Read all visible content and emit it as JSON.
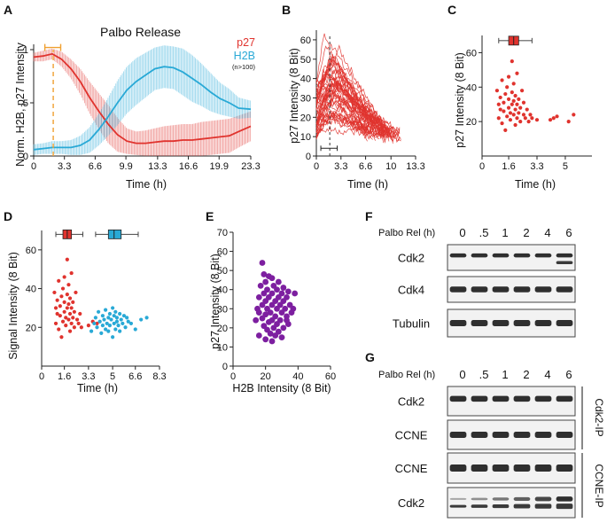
{
  "colors": {
    "p27": "#e0332e",
    "h2b": "#29a9d6",
    "purple": "#7d1fa0",
    "orange": "#f0a030"
  },
  "panels": {
    "A": "A",
    "B": "B",
    "C": "C",
    "D": "D",
    "E": "E",
    "F": "F",
    "G": "G"
  },
  "chart_data": [
    {
      "id": "A",
      "type": "line",
      "title": "Palbo Release",
      "xlabel": "Time (h)",
      "ylabel": "Norm. H2B, p27 Intensity",
      "xlim": [
        0,
        23.3
      ],
      "ylim": [
        0,
        1.05
      ],
      "xticks": [
        0,
        3.3,
        6.6,
        9.9,
        13.3,
        16.6,
        19.9,
        23.3
      ],
      "xtick_labels": [
        "0",
        "3.3",
        "6.6",
        "9.9",
        "13.3",
        "16.6",
        "19.9",
        "23.3"
      ],
      "yticks": [
        0,
        0.5,
        1
      ],
      "ytick_labels": [
        "0",
        ".5",
        "1"
      ],
      "legend": [
        "p27",
        "H2B"
      ],
      "legend_note": "(n>100)",
      "marker_x": 2.1,
      "marker_range": [
        1.2,
        2.9
      ],
      "x": [
        0,
        1,
        2,
        3,
        4,
        5,
        6,
        7,
        8,
        9,
        10,
        11,
        12,
        13,
        14,
        15,
        16,
        17,
        18,
        19,
        20,
        21,
        22,
        23.3
      ],
      "series": [
        {
          "name": "p27",
          "values": [
            0.93,
            0.94,
            0.96,
            0.91,
            0.82,
            0.7,
            0.55,
            0.42,
            0.3,
            0.2,
            0.14,
            0.12,
            0.12,
            0.13,
            0.14,
            0.14,
            0.15,
            0.15,
            0.16,
            0.17,
            0.18,
            0.19,
            0.23,
            0.28
          ],
          "err": [
            0.04,
            0.05,
            0.05,
            0.07,
            0.09,
            0.12,
            0.15,
            0.17,
            0.18,
            0.16,
            0.12,
            0.11,
            0.12,
            0.13,
            0.14,
            0.15,
            0.15,
            0.15,
            0.16,
            0.16,
            0.16,
            0.16,
            0.15,
            0.14
          ]
        },
        {
          "name": "H2B",
          "values": [
            0.06,
            0.07,
            0.08,
            0.08,
            0.08,
            0.1,
            0.15,
            0.25,
            0.37,
            0.5,
            0.62,
            0.7,
            0.76,
            0.82,
            0.84,
            0.83,
            0.79,
            0.73,
            0.67,
            0.6,
            0.54,
            0.5,
            0.45,
            0.44
          ],
          "err": [
            0.05,
            0.05,
            0.06,
            0.06,
            0.07,
            0.09,
            0.12,
            0.15,
            0.18,
            0.21,
            0.22,
            0.22,
            0.21,
            0.2,
            0.2,
            0.2,
            0.22,
            0.22,
            0.2,
            0.18,
            0.15,
            0.13,
            0.1,
            0.08
          ]
        }
      ]
    },
    {
      "id": "B",
      "type": "line",
      "xlabel": "Time (h)",
      "ylabel": "p27 Intensity (8 Bit)",
      "xlim": [
        0,
        13.3
      ],
      "ylim": [
        0,
        65
      ],
      "xticks": [
        0,
        3.3,
        6.6,
        10,
        13.3
      ],
      "xtick_labels": [
        "0",
        "3.3",
        "6.6",
        "10",
        "13.3"
      ],
      "yticks": [
        0,
        10,
        20,
        30,
        40,
        50,
        60
      ],
      "ytick_labels": [
        "0",
        "10",
        "20",
        "30",
        "40",
        "50",
        "60"
      ],
      "marker_x": 1.8,
      "marker_range": [
        0.6,
        2.8
      ],
      "n_traces": 50,
      "trace_start_range": [
        10,
        62
      ],
      "trace_end_range": [
        8,
        13
      ],
      "peak_time_range": [
        1,
        3.5
      ],
      "end_time_range": [
        6.5,
        11.5
      ]
    },
    {
      "id": "C",
      "type": "scatter",
      "xlabel": "Time (h)",
      "ylabel": "p27 Intensity (8 Bit)",
      "xlim": [
        0,
        6.6
      ],
      "ylim": [
        0,
        70
      ],
      "xticks": [
        0,
        1.6,
        3.3,
        5
      ],
      "xtick_labels": [
        "0",
        "1.6",
        "3.3",
        "5"
      ],
      "yticks": [
        20,
        40,
        60
      ],
      "ytick_labels": [
        "20",
        "40",
        "60"
      ],
      "box": {
        "min": 1.0,
        "q1": 1.6,
        "median": 1.9,
        "q3": 2.2,
        "max": 3.0,
        "y": 67
      },
      "points": [
        [
          0.9,
          38
        ],
        [
          1.0,
          30
        ],
        [
          1.0,
          22
        ],
        [
          1.1,
          27
        ],
        [
          1.1,
          34
        ],
        [
          1.2,
          19
        ],
        [
          1.2,
          44
        ],
        [
          1.3,
          26
        ],
        [
          1.3,
          31
        ],
        [
          1.4,
          15
        ],
        [
          1.4,
          36
        ],
        [
          1.5,
          23
        ],
        [
          1.5,
          40
        ],
        [
          1.6,
          28
        ],
        [
          1.6,
          33
        ],
        [
          1.6,
          46
        ],
        [
          1.7,
          21
        ],
        [
          1.7,
          25
        ],
        [
          1.8,
          30
        ],
        [
          1.8,
          37
        ],
        [
          1.8,
          55
        ],
        [
          1.9,
          24
        ],
        [
          1.9,
          32
        ],
        [
          1.9,
          42
        ],
        [
          2.0,
          18
        ],
        [
          2.0,
          27
        ],
        [
          2.0,
          35
        ],
        [
          2.1,
          22
        ],
        [
          2.1,
          30
        ],
        [
          2.1,
          48
        ],
        [
          2.2,
          25
        ],
        [
          2.2,
          33
        ],
        [
          2.3,
          20
        ],
        [
          2.3,
          28
        ],
        [
          2.4,
          38
        ],
        [
          2.5,
          24
        ],
        [
          2.5,
          31
        ],
        [
          2.6,
          22
        ],
        [
          2.7,
          27
        ],
        [
          2.8,
          20
        ],
        [
          2.9,
          24
        ],
        [
          3.0,
          22
        ],
        [
          3.3,
          21
        ],
        [
          4.1,
          21
        ],
        [
          4.3,
          22
        ],
        [
          4.5,
          23
        ],
        [
          5.2,
          20
        ],
        [
          5.5,
          24
        ]
      ]
    },
    {
      "id": "D",
      "type": "scatter",
      "xlabel": "Time (h)",
      "ylabel": "Signal Intensity (8 Bit)",
      "xlim": [
        0,
        8.3
      ],
      "ylim": [
        0,
        70
      ],
      "xticks": [
        0,
        1.6,
        3.3,
        5,
        6.6,
        8.3
      ],
      "xtick_labels": [
        "0",
        "1.6",
        "3.3",
        "5",
        "6.6",
        "8.3"
      ],
      "yticks": [
        20,
        40,
        60
      ],
      "ytick_labels": [
        "20",
        "40",
        "60"
      ],
      "boxes": [
        {
          "name": "p27",
          "min": 1.0,
          "q1": 1.5,
          "median": 1.8,
          "q3": 2.1,
          "max": 2.9,
          "y": 68
        },
        {
          "name": "H2B",
          "min": 3.8,
          "q1": 4.7,
          "median": 5.1,
          "q3": 5.6,
          "max": 6.8,
          "y": 68
        }
      ],
      "series": [
        {
          "name": "p27",
          "points": [
            [
              0.9,
              38
            ],
            [
              1.0,
              30
            ],
            [
              1.0,
              22
            ],
            [
              1.1,
              27
            ],
            [
              1.1,
              34
            ],
            [
              1.2,
              19
            ],
            [
              1.2,
              44
            ],
            [
              1.3,
              26
            ],
            [
              1.3,
              31
            ],
            [
              1.4,
              15
            ],
            [
              1.4,
              36
            ],
            [
              1.5,
              23
            ],
            [
              1.5,
              40
            ],
            [
              1.6,
              28
            ],
            [
              1.6,
              33
            ],
            [
              1.6,
              46
            ],
            [
              1.7,
              21
            ],
            [
              1.7,
              25
            ],
            [
              1.8,
              30
            ],
            [
              1.8,
              37
            ],
            [
              1.8,
              55
            ],
            [
              1.9,
              24
            ],
            [
              1.9,
              32
            ],
            [
              1.9,
              42
            ],
            [
              2.0,
              18
            ],
            [
              2.0,
              27
            ],
            [
              2.0,
              35
            ],
            [
              2.1,
              22
            ],
            [
              2.1,
              30
            ],
            [
              2.1,
              48
            ],
            [
              2.2,
              25
            ],
            [
              2.2,
              33
            ],
            [
              2.3,
              20
            ],
            [
              2.3,
              28
            ],
            [
              2.4,
              38
            ],
            [
              2.5,
              24
            ],
            [
              2.6,
              22
            ],
            [
              2.7,
              27
            ],
            [
              2.8,
              20
            ],
            [
              3.3,
              21
            ],
            [
              3.6,
              23
            ],
            [
              3.9,
              22
            ]
          ]
        },
        {
          "name": "H2B",
          "points": [
            [
              3.5,
              18
            ],
            [
              3.7,
              22
            ],
            [
              3.8,
              25
            ],
            [
              3.9,
              20
            ],
            [
              4.0,
              28
            ],
            [
              4.1,
              23
            ],
            [
              4.2,
              17
            ],
            [
              4.3,
              26
            ],
            [
              4.3,
              21
            ],
            [
              4.4,
              24
            ],
            [
              4.5,
              19
            ],
            [
              4.5,
              29
            ],
            [
              4.6,
              22
            ],
            [
              4.7,
              25
            ],
            [
              4.7,
              18
            ],
            [
              4.8,
              27
            ],
            [
              4.8,
              21
            ],
            [
              4.9,
              24
            ],
            [
              5.0,
              15
            ],
            [
              5.0,
              30
            ],
            [
              5.1,
              22
            ],
            [
              5.1,
              26
            ],
            [
              5.2,
              19
            ],
            [
              5.2,
              28
            ],
            [
              5.3,
              23
            ],
            [
              5.3,
              25
            ],
            [
              5.4,
              21
            ],
            [
              5.5,
              27
            ],
            [
              5.5,
              18
            ],
            [
              5.6,
              24
            ],
            [
              5.7,
              22
            ],
            [
              5.8,
              26
            ],
            [
              5.9,
              20
            ],
            [
              6.0,
              25
            ],
            [
              6.1,
              23
            ],
            [
              6.3,
              22
            ],
            [
              6.6,
              19
            ],
            [
              7.0,
              24
            ],
            [
              7.4,
              25
            ]
          ]
        }
      ]
    },
    {
      "id": "E",
      "type": "scatter",
      "xlabel": "H2B Intensity (8 Bit)",
      "ylabel": "p27 Intensity (8 Bit)",
      "xlim": [
        0,
        60
      ],
      "ylim": [
        0,
        70
      ],
      "xticks": [
        0,
        20,
        40,
        60
      ],
      "xtick_labels": [
        "0",
        "20",
        "40",
        "60"
      ],
      "yticks": [
        0,
        10,
        20,
        30,
        40,
        50,
        60,
        70
      ],
      "ytick_labels": [
        "0",
        "10",
        "20",
        "30",
        "40",
        "50",
        "60",
        "70"
      ],
      "points": [
        [
          18,
          54
        ],
        [
          19,
          48
        ],
        [
          22,
          47
        ],
        [
          24,
          46
        ],
        [
          20,
          44
        ],
        [
          28,
          44
        ],
        [
          17,
          42
        ],
        [
          25,
          42
        ],
        [
          31,
          41
        ],
        [
          21,
          40
        ],
        [
          27,
          40
        ],
        [
          34,
          39
        ],
        [
          19,
          38
        ],
        [
          24,
          38
        ],
        [
          30,
          38
        ],
        [
          38,
          38
        ],
        [
          16,
          36
        ],
        [
          22,
          36
        ],
        [
          28,
          36
        ],
        [
          33,
          36
        ],
        [
          20,
          34
        ],
        [
          26,
          34
        ],
        [
          31,
          34
        ],
        [
          18,
          32
        ],
        [
          24,
          32
        ],
        [
          29,
          32
        ],
        [
          35,
          32
        ],
        [
          21,
          30
        ],
        [
          27,
          30
        ],
        [
          32,
          30
        ],
        [
          16,
          28
        ],
        [
          23,
          28
        ],
        [
          30,
          28
        ],
        [
          36,
          28
        ],
        [
          20,
          27
        ],
        [
          26,
          26
        ],
        [
          33,
          26
        ],
        [
          18,
          25
        ],
        [
          24,
          24
        ],
        [
          29,
          24
        ],
        [
          22,
          23
        ],
        [
          27,
          22
        ],
        [
          34,
          22
        ],
        [
          19,
          21
        ],
        [
          25,
          20
        ],
        [
          31,
          20
        ],
        [
          21,
          19
        ],
        [
          28,
          18
        ],
        [
          23,
          17
        ],
        [
          16,
          16
        ],
        [
          26,
          16
        ],
        [
          30,
          15
        ],
        [
          20,
          14
        ],
        [
          24,
          13
        ],
        [
          33,
          24
        ],
        [
          15,
          30
        ],
        [
          37,
          30
        ],
        [
          14,
          24
        ]
      ]
    }
  ],
  "blot_F": {
    "panel": "F",
    "row_label": "Palbo Rel (h)",
    "lanes": [
      "0",
      ".5",
      "1",
      "2",
      "4",
      "6"
    ],
    "blots": [
      "Cdk2",
      "Cdk4",
      "Tubulin"
    ]
  },
  "blot_G": {
    "panel": "G",
    "row_label": "Palbo Rel (h)",
    "lanes": [
      "0",
      ".5",
      "1",
      "2",
      "4",
      "6"
    ],
    "blots": [
      "Cdk2",
      "CCNE",
      "CCNE",
      "Cdk2"
    ],
    "groups": [
      "Cdk2-IP",
      "CCNE-IP"
    ]
  }
}
